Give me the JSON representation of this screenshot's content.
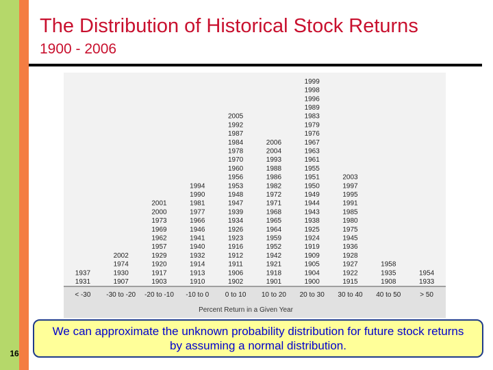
{
  "slide": {
    "title": "The Distribution of Historical Stock Returns",
    "subtitle": "1900 - 2006",
    "caption": "We can approximate the unknown probability distribution for future stock returns by assuming a normal distribution.",
    "page_number": "16",
    "colors": {
      "title": "#c8102e",
      "accent_green": "#b5d86a",
      "accent_orange": "#f47d42",
      "caption_bg": "#ffff99",
      "caption_text": "#0000cc",
      "chart_bg": "#f2f2f2",
      "axis_band": "#e1e1e1"
    }
  },
  "chart_data": {
    "type": "table",
    "xlabel": "Percent Return in a Given Year",
    "categories": [
      "< -30",
      "-30 to -20",
      "-20 to -10",
      "-10 to 0",
      "0 to 10",
      "10 to 20",
      "20 to 30",
      "30 to 40",
      "40 to 50",
      "> 50"
    ],
    "bins": [
      {
        "label": "< -30",
        "years": [
          "1937",
          "1931"
        ]
      },
      {
        "label": "-30 to -20",
        "years": [
          "2002",
          "1974",
          "1930",
          "1907"
        ]
      },
      {
        "label": "-20 to -10",
        "years": [
          "2001",
          "2000",
          "1973",
          "1969",
          "1962",
          "1957",
          "1929",
          "1920",
          "1917",
          "1903"
        ]
      },
      {
        "label": "-10 to 0",
        "years": [
          "1994",
          "1990",
          "1981",
          "1977",
          "1966",
          "1946",
          "1941",
          "1940",
          "1932",
          "1914",
          "1913",
          "1910"
        ]
      },
      {
        "label": "0 to 10",
        "years": [
          "2005",
          "1992",
          "1987",
          "1984",
          "1978",
          "1970",
          "1960",
          "1956",
          "1953",
          "1948",
          "1947",
          "1939",
          "1934",
          "1926",
          "1923",
          "1916",
          "1912",
          "1911",
          "1906",
          "1902"
        ]
      },
      {
        "label": "10 to 20",
        "years": [
          "2006",
          "2004",
          "1993",
          "1988",
          "1986",
          "1982",
          "1972",
          "1971",
          "1968",
          "1965",
          "1964",
          "1959",
          "1952",
          "1942",
          "1921",
          "1918",
          "1901"
        ]
      },
      {
        "label": "20 to 30",
        "years": [
          "1999",
          "1998",
          "1996",
          "1989",
          "1983",
          "1979",
          "1976",
          "1967",
          "1963",
          "1961",
          "1955",
          "1951",
          "1950",
          "1949",
          "1944",
          "1943",
          "1938",
          "1925",
          "1924",
          "1919",
          "1909",
          "1905",
          "1904",
          "1900"
        ]
      },
      {
        "label": "30 to 40",
        "years": [
          "2003",
          "1997",
          "1995",
          "1991",
          "1985",
          "1980",
          "1975",
          "1945",
          "1936",
          "1928",
          "1927",
          "1922",
          "1915"
        ]
      },
      {
        "label": "40 to 50",
        "years": [
          "1958",
          "1935",
          "1908"
        ]
      },
      {
        "label": "> 50",
        "years": [
          "1954",
          "1933"
        ]
      }
    ]
  }
}
